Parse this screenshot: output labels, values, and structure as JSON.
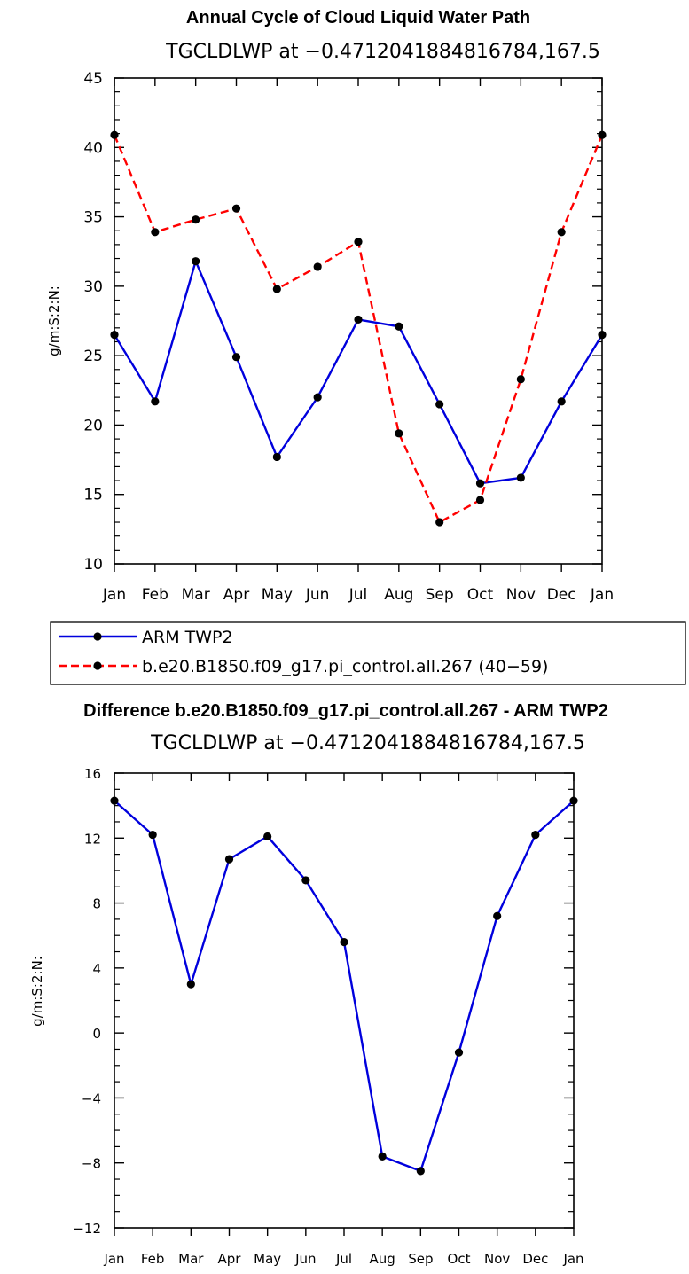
{
  "chart_data": [
    {
      "type": "line",
      "title": "Annual Cycle of Cloud Liquid Water Path",
      "subtitle": "TGCLDLWP at −0.4712041884816784,167.5",
      "ylabel": "g/m:S:2:N:",
      "xlabel": "",
      "categories": [
        "Jan",
        "Feb",
        "Mar",
        "Apr",
        "May",
        "Jun",
        "Jul",
        "Aug",
        "Sep",
        "Oct",
        "Nov",
        "Dec",
        "Jan"
      ],
      "ylim": [
        10,
        45
      ],
      "yticks": [
        10,
        15,
        20,
        25,
        30,
        35,
        40,
        45
      ],
      "series": [
        {
          "name": "ARM TWP2",
          "color": "#0000dd",
          "dash": "solid",
          "values": [
            26.5,
            21.7,
            31.8,
            24.9,
            17.7,
            22.0,
            27.6,
            27.1,
            21.5,
            15.8,
            16.2,
            21.7,
            26.5
          ]
        },
        {
          "name": "b.e20.B1850.f09_g17.pi_control.all.267 (40−59)",
          "color": "#ff0000",
          "dash": "dashed",
          "values": [
            40.9,
            33.9,
            34.8,
            35.6,
            29.8,
            31.4,
            33.2,
            19.4,
            13.0,
            14.6,
            23.3,
            33.9,
            40.9
          ]
        }
      ],
      "legend_position": "below"
    },
    {
      "type": "line",
      "title": "Difference b.e20.B1850.f09_g17.pi_control.all.267 - ARM TWP2",
      "subtitle": "TGCLDLWP at −0.4712041884816784,167.5",
      "ylabel": "g/m:S:2:N:",
      "xlabel": "",
      "categories": [
        "Jan",
        "Feb",
        "Mar",
        "Apr",
        "May",
        "Jun",
        "Jul",
        "Aug",
        "Sep",
        "Oct",
        "Nov",
        "Dec",
        "Jan"
      ],
      "ylim": [
        -12,
        16
      ],
      "yticks": [
        -12,
        -8,
        -4,
        0,
        4,
        8,
        12,
        16
      ],
      "ytick_labels": [
        "−12",
        "−8",
        "−4",
        "0",
        "4",
        "8",
        "12",
        "16"
      ],
      "series": [
        {
          "name": "Difference",
          "color": "#0000dd",
          "dash": "solid",
          "values": [
            14.3,
            12.2,
            3.0,
            10.7,
            12.1,
            9.4,
            5.6,
            -7.6,
            -8.5,
            -1.2,
            7.2,
            12.2,
            14.3
          ]
        }
      ]
    }
  ]
}
